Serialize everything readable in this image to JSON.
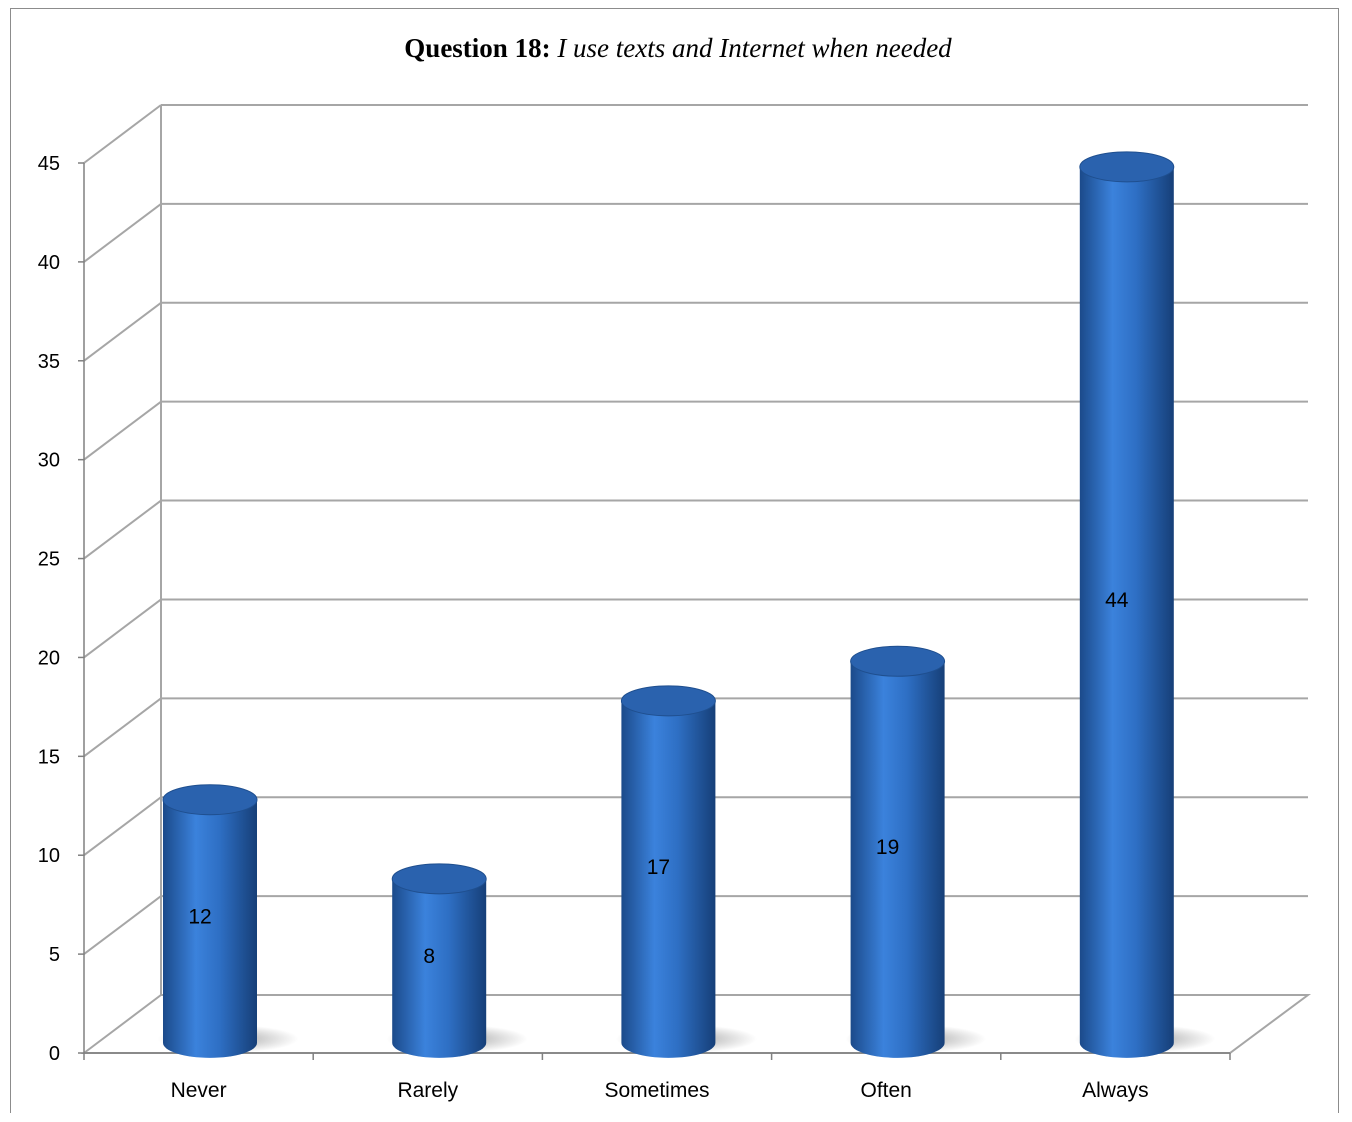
{
  "chart_data": {
    "type": "bar",
    "title_bold": "Question 18:",
    "title_italic": "I use texts and Internet when needed",
    "categories": [
      "Never",
      "Rarely",
      "Sometimes",
      "Often",
      "Always"
    ],
    "values": [
      12,
      8,
      17,
      19,
      44
    ],
    "ylim": [
      0,
      45
    ],
    "yticks": [
      "0",
      "5",
      "10",
      "15",
      "20",
      "25",
      "30",
      "35",
      "40",
      "45"
    ],
    "grid": true,
    "bar_style": "3d-cylinder",
    "data_labels": true,
    "colors": {
      "bar": "#2E6FC4",
      "bar_dark": "#1F4F8F",
      "bar_top": "#2A62AE",
      "grid": "#a6a6a6"
    }
  }
}
